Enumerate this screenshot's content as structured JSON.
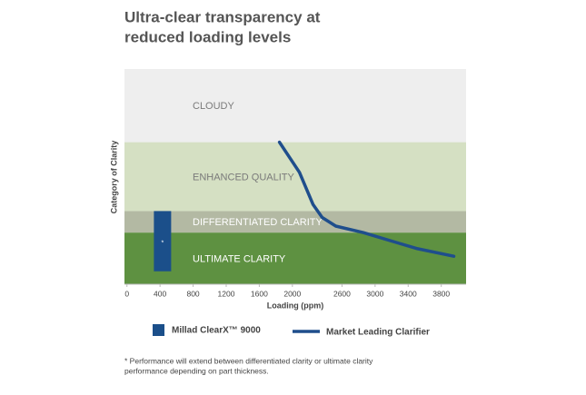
{
  "chart_data": {
    "type": "band-line",
    "title": [
      "Ultra-clear transparency at",
      "reduced loading levels"
    ],
    "x_label": "Loading (ppm)",
    "y_label": "Category of Clarity",
    "xlim": [
      -30,
      4100
    ],
    "xticks": [
      0,
      400,
      800,
      1200,
      1600,
      2000,
      2600,
      3000,
      3400,
      3800
    ],
    "ylim": [
      0,
      100
    ],
    "bands": [
      {
        "label": "ULTIMATE CLARITY",
        "range": [
          0,
          24
        ],
        "color": "#5e9141",
        "text_color": "#ffffff"
      },
      {
        "label": "DIFFERENTIATED CLARITY",
        "range": [
          24,
          34
        ],
        "color": "#b3b9a3",
        "text_color": "#ffffff"
      },
      {
        "label": "ENHANCED QUALITY",
        "range": [
          34,
          66
        ],
        "color": "#d5e0c3",
        "text_color": "#7a7a7a"
      },
      {
        "label": "CLOUDY",
        "range": [
          66,
          100
        ],
        "color": "#eeeeee",
        "text_color": "#7a7a7a"
      }
    ],
    "series": [
      {
        "name": "Millad ClearX™ 9000",
        "kind": "range-bar",
        "color": "#1b4f8a",
        "x": 430,
        "range": [
          6,
          34
        ],
        "marker": "*"
      },
      {
        "name": "Market Leading Clarifier",
        "kind": "line",
        "color": "#1f4e8c",
        "x": [
          1844,
          2086,
          2250,
          2360,
          2525,
          2854,
          3293,
          3513,
          3952
        ],
        "values": [
          66,
          52,
          37,
          31,
          27,
          24,
          19,
          16.5,
          13
        ]
      }
    ],
    "footnote": [
      "* Performance will extend between differentiated clarity or ultimate clarity",
      "performance depending on part thickness."
    ]
  }
}
